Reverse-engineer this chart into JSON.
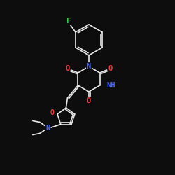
{
  "bg_color": "#0d0d0d",
  "bond_color": "#e8e8e8",
  "atom_colors": {
    "N": "#4466ff",
    "O": "#ff3333",
    "F": "#33cc44",
    "C": "#e8e8e8"
  },
  "figsize": [
    2.5,
    2.5
  ],
  "dpi": 100
}
